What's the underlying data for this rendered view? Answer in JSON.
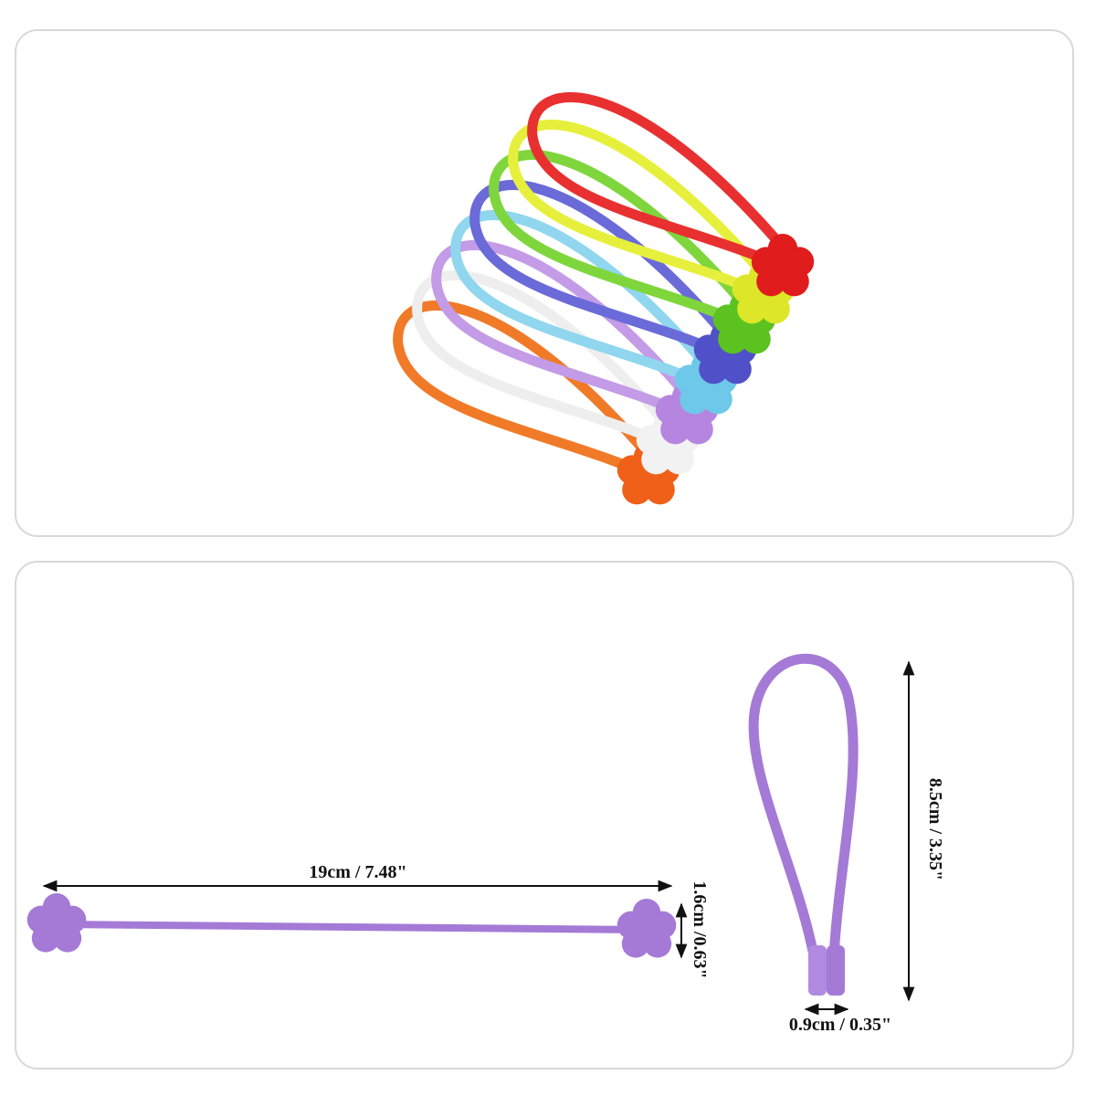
{
  "dimensions": {
    "length": "19cm / 7.48\"",
    "head_width": "1.6cm /0.63\"",
    "loop_height": "8.5cm / 3.35\"",
    "loop_width": "0.9cm / 0.35\""
  }
}
